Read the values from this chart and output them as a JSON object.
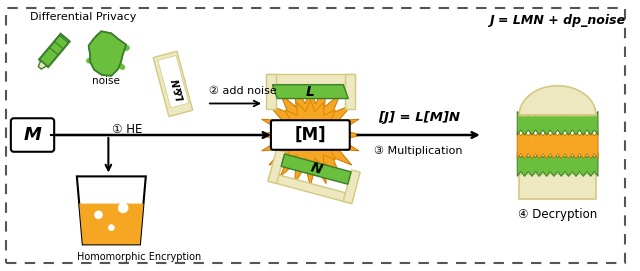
{
  "background_color": "#ffffff",
  "fig_width": 6.4,
  "fig_height": 2.71,
  "dpi": 100,
  "colors": {
    "green_dark": "#3a7d2c",
    "green_mid": "#5aaa3c",
    "green_bright": "#6abf3c",
    "yellow_orange": "#f5a623",
    "beige": "#ede8c0",
    "beige_dark": "#d4c980",
    "orange_dark": "#cc7700",
    "white": "#ffffff",
    "black": "#000000"
  },
  "labels": {
    "dp": "Differential Privacy",
    "noise": "noise",
    "add_noise": "② add noise",
    "M_box": "M",
    "HE": "① HE",
    "enc_M": "[M]",
    "result": "[J] = L[M]N",
    "multiply": "③ Multiplication",
    "J_eq": "J = LMN + dp_noise",
    "decrypt": "④ Decryption",
    "hom_enc": "Homomorphic Encryption",
    "L_label": "L",
    "N_label": "N",
    "LN_label": "L&N"
  }
}
